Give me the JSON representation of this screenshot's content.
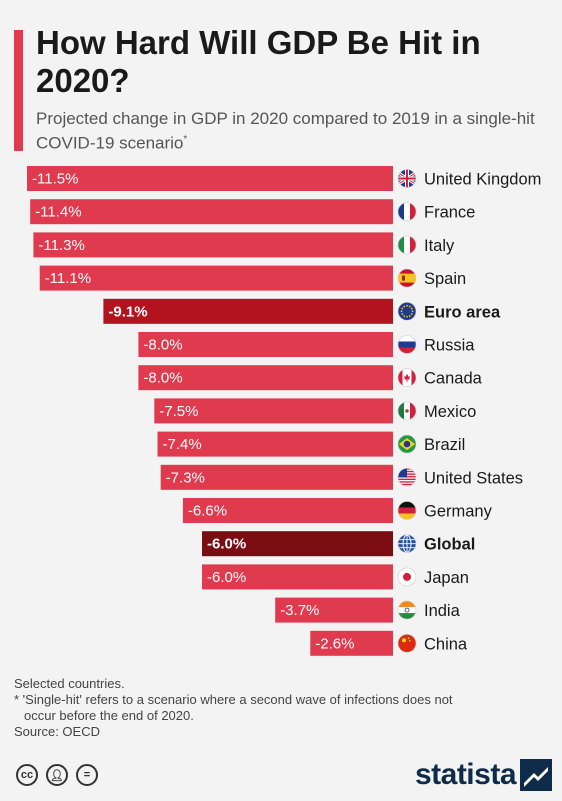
{
  "header": {
    "title": "How Hard Will GDP Be Hit in 2020?",
    "subtitle": "Projected change in GDP in 2020 compared to 2019 in a single-hit COVID-19 scenario",
    "subtitle_mark": "*"
  },
  "chart_data": {
    "type": "bar",
    "orientation": "horizontal",
    "title": "How Hard Will GDP Be Hit in 2020?",
    "xlabel": "",
    "ylabel": "",
    "unit": "%",
    "xlim": [
      -11.5,
      0
    ],
    "grid": false,
    "categories": [
      "United Kingdom",
      "France",
      "Italy",
      "Spain",
      "Euro area",
      "Russia",
      "Canada",
      "Mexico",
      "Brazil",
      "United States",
      "Germany",
      "Global",
      "Japan",
      "India",
      "China"
    ],
    "values": [
      -11.5,
      -11.4,
      -11.3,
      -11.1,
      -9.1,
      -8.0,
      -8.0,
      -7.5,
      -7.4,
      -7.3,
      -6.6,
      -6.0,
      -6.0,
      -3.7,
      -2.6
    ],
    "value_labels": [
      "-11.5%",
      "-11.4%",
      "-11.3%",
      "-11.1%",
      "-9.1%",
      "-8.0%",
      "-8.0%",
      "-7.5%",
      "-7.4%",
      "-7.3%",
      "-6.6%",
      "-6.0%",
      "-6.0%",
      "-3.7%",
      "-2.6%"
    ],
    "highlight": [
      false,
      false,
      false,
      false,
      true,
      false,
      false,
      false,
      false,
      false,
      false,
      true,
      false,
      false,
      false
    ],
    "flags": [
      "gb-flag-icon",
      "fr-flag-icon",
      "it-flag-icon",
      "es-flag-icon",
      "eu-flag-icon",
      "ru-flag-icon",
      "ca-flag-icon",
      "mx-flag-icon",
      "br-flag-icon",
      "us-flag-icon",
      "de-flag-icon",
      "globe-icon",
      "jp-flag-icon",
      "in-flag-icon",
      "cn-flag-icon"
    ],
    "colors": {
      "bar": "#e03a4e",
      "euro_area": "#b3121f",
      "global": "#7a0c12"
    }
  },
  "footer": {
    "note1": "Selected countries.",
    "note2": "* 'Single-hit' refers to a scenario where a second wave of infections does not",
    "note3": "occur before the end of 2020.",
    "source": "Source: OECD",
    "brand": "statista"
  }
}
